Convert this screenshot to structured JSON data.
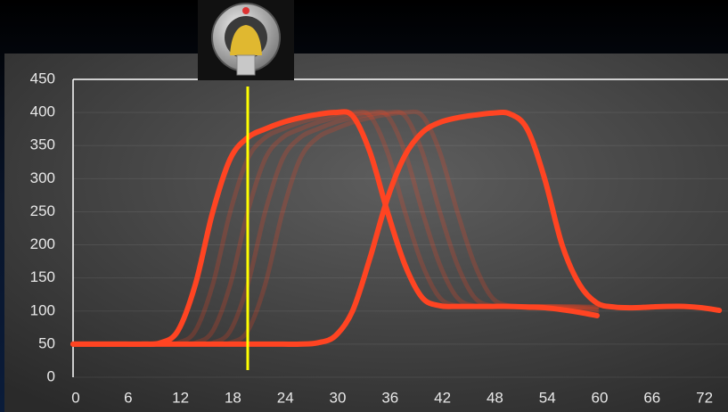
{
  "chart_data": {
    "type": "line",
    "x": [
      0,
      2,
      4,
      6,
      8,
      10,
      12,
      14,
      16,
      18,
      20,
      22,
      24,
      26,
      28,
      30,
      32,
      34,
      36,
      38,
      40,
      42,
      44,
      46,
      48,
      50,
      52,
      54,
      56,
      58,
      60,
      62,
      64,
      66,
      68,
      70,
      72,
      74
    ],
    "series": [
      {
        "color": "#ff4422",
        "opacity": 0.22,
        "values": [
          50,
          50,
          50,
          50,
          50,
          50,
          50,
          50,
          50,
          52,
          70,
          140,
          250,
          330,
          362,
          375,
          385,
          392,
          397,
          400,
          395,
          340,
          250,
          170,
          120,
          108,
          107,
          107,
          107,
          107,
          106,
          null,
          null,
          null,
          null,
          null,
          null,
          null
        ]
      },
      {
        "color": "#ff4422",
        "opacity": 0.22,
        "values": [
          50,
          50,
          50,
          50,
          50,
          50,
          50,
          50,
          52,
          70,
          140,
          250,
          330,
          362,
          375,
          385,
          392,
          397,
          400,
          395,
          340,
          250,
          170,
          120,
          108,
          107,
          107,
          107,
          107,
          106,
          105,
          null,
          null,
          null,
          null,
          null,
          null,
          null
        ]
      },
      {
        "color": "#ff4422",
        "opacity": 0.22,
        "values": [
          50,
          50,
          50,
          50,
          50,
          50,
          50,
          52,
          70,
          140,
          250,
          330,
          362,
          375,
          385,
          392,
          397,
          400,
          395,
          340,
          250,
          170,
          120,
          108,
          107,
          107,
          107,
          107,
          106,
          105,
          102,
          null,
          null,
          null,
          null,
          null,
          null,
          null
        ]
      },
      {
        "color": "#ff4422",
        "opacity": 0.22,
        "values": [
          50,
          50,
          50,
          50,
          50,
          50,
          52,
          70,
          140,
          250,
          330,
          362,
          375,
          385,
          392,
          397,
          400,
          395,
          340,
          250,
          170,
          120,
          108,
          107,
          107,
          107,
          107,
          106,
          105,
          102,
          98,
          null,
          null,
          null,
          null,
          null,
          null,
          null
        ]
      },
      {
        "color": "#ff4422",
        "opacity": 1,
        "values": [
          50,
          50,
          50,
          50,
          50,
          52,
          70,
          140,
          250,
          330,
          362,
          375,
          385,
          392,
          397,
          400,
          395,
          340,
          250,
          170,
          120,
          108,
          107,
          107,
          107,
          107,
          106,
          105,
          102,
          98,
          93,
          null,
          null,
          null,
          null,
          null,
          null,
          null
        ]
      },
      {
        "color": "#ff4422",
        "opacity": 1,
        "values": [
          50,
          50,
          50,
          50,
          50,
          50,
          50,
          50,
          50,
          50,
          50,
          50,
          50,
          50,
          52,
          62,
          100,
          180,
          270,
          335,
          370,
          385,
          392,
          396,
          399,
          398,
          375,
          300,
          200,
          140,
          112,
          106,
          105,
          106,
          107,
          107,
          105,
          101
        ]
      }
    ],
    "xlim": [
      0,
      75
    ],
    "xticks": [
      0,
      6,
      12,
      18,
      24,
      30,
      36,
      42,
      48,
      54,
      60,
      66,
      72
    ],
    "ylim": [
      0,
      450
    ],
    "yticks": [
      0,
      50,
      100,
      150,
      200,
      250,
      300,
      350,
      400,
      450
    ],
    "grid": true,
    "vline": {
      "x": 20,
      "color": "#ffff00"
    }
  }
}
